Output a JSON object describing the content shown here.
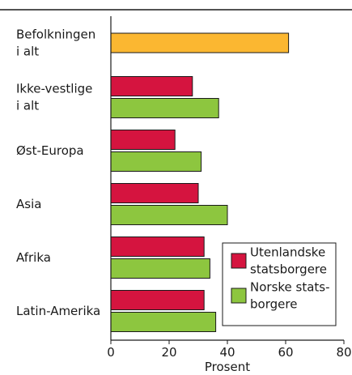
{
  "chart_data": {
    "type": "hbar",
    "categories": [
      "Befolkningen\ni alt",
      "Ikke-vestlige\ni alt",
      "Øst-Europa",
      "Asia",
      "Afrika",
      "Latin-Amerika"
    ],
    "total_values": [
      61,
      null,
      null,
      null,
      null,
      null
    ],
    "total_color": "#fbb731",
    "series": [
      {
        "name": "Utenlandske\nstatsborgere",
        "color": "#d5143f",
        "values": [
          null,
          28,
          22,
          30,
          32,
          32
        ]
      },
      {
        "name": "Norske stats-\nborgere",
        "color": "#8dc63f",
        "values": [
          null,
          37,
          31,
          40,
          34,
          36
        ]
      }
    ],
    "xlim": [
      0,
      80
    ],
    "xticks": [
      0,
      20,
      40,
      60,
      80
    ],
    "x_label": "Prosent",
    "legend": "lower right"
  }
}
